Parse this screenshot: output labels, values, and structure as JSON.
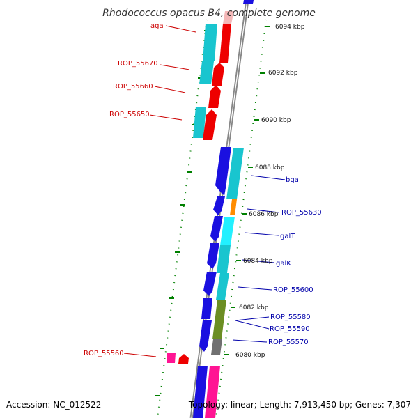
{
  "title": "Rhodococcus opacus B4, complete genome",
  "footer": {
    "accession": "Accession: NC_012522",
    "topology": "Topology: linear; Length: 7,913,450 bp; Genes: 7,307"
  },
  "scale_labels": [
    "6094 kbp",
    "6092 kbp",
    "6090 kbp",
    "6088 kbp",
    "6086 kbp",
    "6084 kbp",
    "6082 kbp",
    "6080 kbp"
  ],
  "genes_left": [
    "aga",
    "ROP_55670",
    "ROP_55660",
    "ROP_55650",
    "ROP_55560"
  ],
  "genes_right": [
    "bga",
    "ROP_55630",
    "galT",
    "galK",
    "ROP_55600",
    "ROP_55580",
    "ROP_55590",
    "ROP_55570"
  ],
  "colors": {
    "forward_strand": "#ee0000",
    "reverse_strand": "#1a10e0",
    "cyan_track": "#19c5cf",
    "light_cyan": "#22f0ff",
    "olive": "#6b8e23",
    "gray": "#707070",
    "pink": "#ff1493",
    "orange": "#ff8c00",
    "tick": "#008000",
    "left_label": "#cc0000",
    "right_label": "#0000aa"
  }
}
